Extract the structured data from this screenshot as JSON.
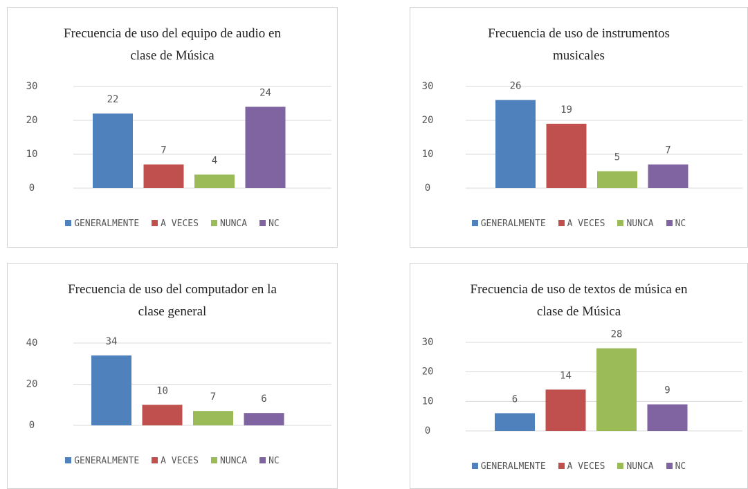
{
  "chart_data": [
    {
      "type": "bar",
      "title": "Frecuencia de uso del equipo de audio en clase de Música",
      "categories": [
        "GENERALMENTE",
        "A VECES",
        "NUNCA",
        "NC"
      ],
      "values": [
        22,
        7,
        4,
        24
      ],
      "colors": [
        "#4f81bd",
        "#c0504d",
        "#9bbb59",
        "#8064a2"
      ],
      "ylim": [
        0,
        30
      ],
      "yticks": [
        0,
        10,
        20,
        30
      ],
      "grid": true,
      "legend": "bottom"
    },
    {
      "type": "bar",
      "title": "Frecuencia de uso de instrumentos musicales",
      "categories": [
        "GENERALMENTE",
        "A VECES",
        "NUNCA",
        "NC"
      ],
      "values": [
        26,
        19,
        5,
        7
      ],
      "colors": [
        "#4f81bd",
        "#c0504d",
        "#9bbb59",
        "#8064a2"
      ],
      "ylim": [
        0,
        30
      ],
      "yticks": [
        0,
        10,
        20,
        30
      ],
      "grid": true,
      "legend": "bottom"
    },
    {
      "type": "bar",
      "title": "Frecuencia de uso del computador en la clase general",
      "categories": [
        "GENERALMENTE",
        "A VECES",
        "NUNCA",
        "NC"
      ],
      "values": [
        34,
        10,
        7,
        6
      ],
      "colors": [
        "#4f81bd",
        "#c0504d",
        "#9bbb59",
        "#8064a2"
      ],
      "ylim": [
        0,
        40
      ],
      "yticks": [
        0,
        20,
        40
      ],
      "grid": true,
      "legend": "bottom"
    },
    {
      "type": "bar",
      "title": "Frecuencia de uso de textos de música en clase de Música",
      "categories": [
        "GENERALMENTE",
        "A VECES",
        "NUNCA",
        "NC"
      ],
      "values": [
        6,
        14,
        28,
        9
      ],
      "colors": [
        "#4f81bd",
        "#c0504d",
        "#9bbb59",
        "#8064a2"
      ],
      "ylim": [
        0,
        30
      ],
      "yticks": [
        0,
        10,
        20,
        30
      ],
      "grid": true,
      "legend": "bottom"
    }
  ]
}
